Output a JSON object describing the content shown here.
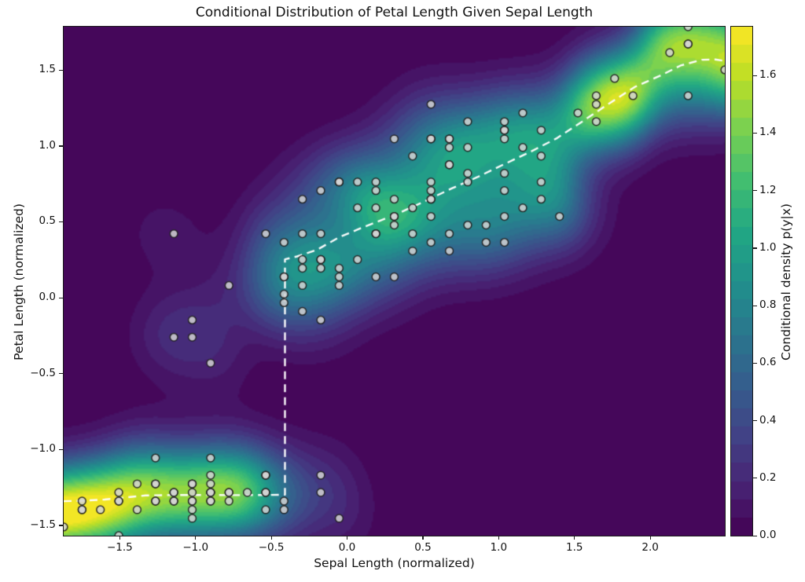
{
  "chart_data": {
    "type": "heatmap",
    "overlays": [
      "scatter",
      "line"
    ],
    "title": "Conditional Distribution of Petal Length Given Sepal Length",
    "xlabel": "Sepal Length (normalized)",
    "ylabel": "Petal Length (normalized)",
    "colorbar_label": "Conditional density p(y|x)",
    "xlim": [
      -1.87,
      2.492
    ],
    "ylim": [
      -1.568,
      1.786
    ],
    "grid": false,
    "legend": null,
    "x_ticks": {
      "values": [
        -1.5,
        -1.0,
        -0.5,
        0.0,
        0.5,
        1.0,
        1.5,
        2.0
      ],
      "labels": [
        "−1.5",
        "−1.0",
        "−0.5",
        "0.0",
        "0.5",
        "1.0",
        "1.5",
        "2.0"
      ]
    },
    "y_ticks": {
      "values": [
        1.5,
        1.0,
        0.5,
        0.0,
        -0.5,
        -1.0,
        -1.5
      ],
      "labels": [
        "1.5",
        "1.0",
        "0.5",
        "0.0",
        "−0.5",
        "−1.0",
        "−1.5"
      ]
    },
    "colorbar": {
      "vmin": 0.0,
      "vmax": 1.77,
      "tick_values": [
        0.0,
        0.2,
        0.4,
        0.6,
        0.8,
        1.0,
        1.2,
        1.4,
        1.6
      ],
      "tick_labels": [
        "0.0",
        "0.2",
        "0.4",
        "0.6",
        "0.8",
        "1.0",
        "1.2",
        "1.4",
        "1.6"
      ]
    },
    "colormap": "viridis",
    "viridis_stops": [
      "#440154",
      "#482475",
      "#414487",
      "#355f8d",
      "#2a788e",
      "#21918c",
      "#22a884",
      "#44bf70",
      "#7ad151",
      "#bddf26",
      "#fde725"
    ],
    "density": {
      "estimator": "conditional-gaussian-kde",
      "bandwidth_x": 0.18,
      "bandwidth_y": 0.2,
      "levels": 28
    },
    "scatter": {
      "description": "Iris (sepal length, petal length), standardized",
      "normalization": {
        "x_mean": 5.843333,
        "x_std": 0.825301,
        "y_mean": 3.758,
        "y_std": 1.759404
      },
      "style": {
        "fill": "#d3d3d3",
        "fill_alpha": 0.85,
        "edge": "#1e1e1e",
        "edge_alpha": 0.9,
        "radius_px": 4.9,
        "edge_width": 1.5
      },
      "points_raw": [
        [
          5.1,
          1.4
        ],
        [
          4.9,
          1.4
        ],
        [
          4.7,
          1.3
        ],
        [
          4.6,
          1.5
        ],
        [
          5.0,
          1.4
        ],
        [
          5.4,
          1.7
        ],
        [
          4.6,
          1.4
        ],
        [
          5.0,
          1.5
        ],
        [
          4.4,
          1.4
        ],
        [
          4.9,
          1.5
        ],
        [
          5.4,
          1.5
        ],
        [
          4.8,
          1.6
        ],
        [
          4.8,
          1.4
        ],
        [
          4.3,
          1.1
        ],
        [
          5.8,
          1.2
        ],
        [
          5.7,
          1.5
        ],
        [
          5.4,
          1.3
        ],
        [
          5.1,
          1.4
        ],
        [
          5.7,
          1.7
        ],
        [
          5.1,
          1.5
        ],
        [
          5.4,
          1.7
        ],
        [
          5.1,
          1.5
        ],
        [
          4.6,
          1.0
        ],
        [
          5.1,
          1.7
        ],
        [
          4.8,
          1.9
        ],
        [
          5.0,
          1.6
        ],
        [
          5.0,
          1.6
        ],
        [
          5.2,
          1.5
        ],
        [
          5.2,
          1.4
        ],
        [
          4.7,
          1.6
        ],
        [
          4.8,
          1.6
        ],
        [
          5.4,
          1.5
        ],
        [
          5.2,
          1.5
        ],
        [
          5.5,
          1.4
        ],
        [
          4.9,
          1.5
        ],
        [
          5.0,
          1.2
        ],
        [
          5.5,
          1.3
        ],
        [
          4.9,
          1.4
        ],
        [
          4.4,
          1.3
        ],
        [
          5.1,
          1.5
        ],
        [
          5.0,
          1.3
        ],
        [
          4.5,
          1.3
        ],
        [
          4.4,
          1.3
        ],
        [
          5.0,
          1.6
        ],
        [
          5.1,
          1.9
        ],
        [
          4.8,
          1.4
        ],
        [
          5.1,
          1.6
        ],
        [
          4.6,
          1.4
        ],
        [
          5.3,
          1.5
        ],
        [
          5.0,
          1.4
        ],
        [
          7.0,
          4.7
        ],
        [
          6.4,
          4.5
        ],
        [
          6.9,
          4.9
        ],
        [
          5.5,
          4.0
        ],
        [
          6.5,
          4.6
        ],
        [
          5.7,
          4.5
        ],
        [
          6.3,
          4.7
        ],
        [
          4.9,
          3.3
        ],
        [
          6.6,
          4.6
        ],
        [
          5.2,
          3.9
        ],
        [
          5.0,
          3.5
        ],
        [
          5.9,
          4.2
        ],
        [
          6.0,
          4.0
        ],
        [
          6.1,
          4.7
        ],
        [
          5.6,
          3.6
        ],
        [
          6.7,
          4.4
        ],
        [
          5.6,
          4.5
        ],
        [
          5.8,
          4.1
        ],
        [
          6.2,
          4.5
        ],
        [
          5.6,
          3.9
        ],
        [
          5.9,
          4.8
        ],
        [
          6.1,
          4.0
        ],
        [
          6.3,
          4.9
        ],
        [
          6.1,
          4.7
        ],
        [
          6.4,
          4.3
        ],
        [
          6.6,
          4.4
        ],
        [
          6.8,
          4.8
        ],
        [
          6.7,
          5.0
        ],
        [
          6.0,
          4.5
        ],
        [
          5.7,
          3.5
        ],
        [
          5.5,
          3.8
        ],
        [
          5.5,
          3.7
        ],
        [
          5.8,
          3.9
        ],
        [
          6.0,
          5.1
        ],
        [
          5.4,
          4.5
        ],
        [
          6.0,
          4.5
        ],
        [
          6.7,
          4.7
        ],
        [
          6.3,
          4.4
        ],
        [
          5.6,
          4.1
        ],
        [
          5.5,
          4.0
        ],
        [
          5.5,
          4.4
        ],
        [
          6.1,
          4.6
        ],
        [
          5.8,
          4.0
        ],
        [
          5.0,
          3.3
        ],
        [
          5.6,
          4.2
        ],
        [
          5.7,
          4.2
        ],
        [
          5.7,
          4.2
        ],
        [
          6.2,
          4.3
        ],
        [
          5.1,
          3.0
        ],
        [
          5.7,
          4.1
        ],
        [
          6.3,
          6.0
        ],
        [
          5.8,
          5.1
        ],
        [
          7.1,
          5.9
        ],
        [
          6.3,
          5.6
        ],
        [
          6.5,
          5.8
        ],
        [
          7.6,
          6.6
        ],
        [
          4.9,
          4.5
        ],
        [
          7.3,
          6.3
        ],
        [
          6.7,
          5.8
        ],
        [
          7.2,
          6.1
        ],
        [
          6.5,
          5.1
        ],
        [
          6.4,
          5.3
        ],
        [
          6.8,
          5.5
        ],
        [
          5.7,
          5.0
        ],
        [
          5.8,
          5.1
        ],
        [
          6.4,
          5.3
        ],
        [
          6.5,
          5.5
        ],
        [
          7.7,
          6.7
        ],
        [
          7.7,
          6.9
        ],
        [
          6.0,
          5.0
        ],
        [
          6.9,
          5.7
        ],
        [
          5.6,
          4.9
        ],
        [
          7.7,
          6.7
        ],
        [
          6.3,
          4.9
        ],
        [
          6.7,
          5.7
        ],
        [
          7.2,
          6.0
        ],
        [
          6.2,
          4.8
        ],
        [
          6.1,
          4.9
        ],
        [
          6.4,
          5.6
        ],
        [
          7.2,
          5.8
        ],
        [
          7.4,
          6.1
        ],
        [
          7.9,
          6.4
        ],
        [
          6.4,
          5.6
        ],
        [
          6.3,
          5.1
        ],
        [
          6.1,
          5.6
        ],
        [
          7.7,
          6.1
        ],
        [
          6.3,
          5.6
        ],
        [
          6.4,
          5.5
        ],
        [
          6.0,
          4.8
        ],
        [
          6.9,
          5.4
        ],
        [
          6.7,
          5.6
        ],
        [
          6.9,
          5.1
        ],
        [
          5.8,
          5.1
        ],
        [
          6.8,
          5.9
        ],
        [
          6.7,
          5.7
        ],
        [
          6.7,
          5.2
        ],
        [
          6.3,
          5.0
        ],
        [
          6.5,
          5.2
        ],
        [
          6.2,
          5.4
        ],
        [
          5.9,
          5.1
        ]
      ]
    },
    "conditional_mean_line": {
      "style": {
        "color": "#ffffff",
        "alpha": 0.97,
        "width": 2.4,
        "dash": [
          10,
          6.5
        ]
      },
      "points": [
        [
          -1.87,
          -1.341
        ],
        [
          -1.75,
          -1.338
        ],
        [
          -1.6,
          -1.33
        ],
        [
          -1.45,
          -1.315
        ],
        [
          -1.33,
          -1.303
        ],
        [
          -1.15,
          -1.3
        ],
        [
          -0.95,
          -1.3
        ],
        [
          -0.75,
          -1.301
        ],
        [
          -0.55,
          -1.3
        ],
        [
          -0.41,
          -1.298
        ],
        [
          -0.41,
          0.253
        ],
        [
          -0.33,
          0.272
        ],
        [
          -0.2,
          0.315
        ],
        [
          -0.05,
          0.4
        ],
        [
          0.1,
          0.462
        ],
        [
          0.32,
          0.548
        ],
        [
          0.5,
          0.63
        ],
        [
          0.69,
          0.72
        ],
        [
          0.86,
          0.795
        ],
        [
          1.03,
          0.877
        ],
        [
          1.21,
          0.962
        ],
        [
          1.38,
          1.049
        ],
        [
          1.55,
          1.16
        ],
        [
          1.72,
          1.274
        ],
        [
          1.9,
          1.39
        ],
        [
          2.07,
          1.465
        ],
        [
          2.2,
          1.53
        ],
        [
          2.34,
          1.568
        ],
        [
          2.43,
          1.57
        ],
        [
          2.492,
          1.56
        ]
      ]
    }
  }
}
